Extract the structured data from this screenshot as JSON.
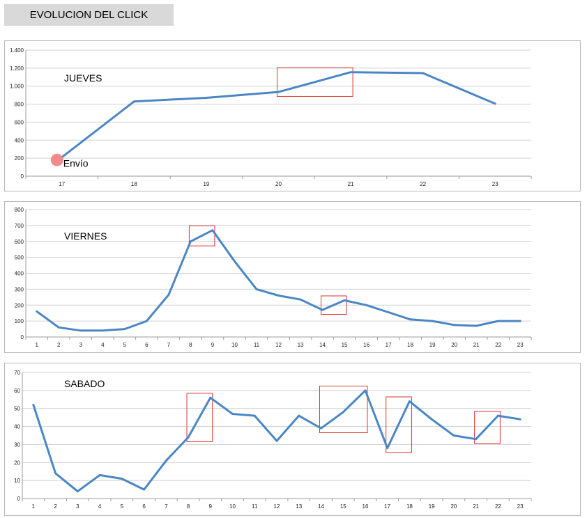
{
  "header": {
    "title": "EVOLUCION DEL CLICK"
  },
  "colors": {
    "line": "#4a86c5",
    "highlight": "#e03030",
    "grid": "#d0d0d0",
    "marker": "#f08080"
  },
  "chart_data": [
    {
      "type": "line",
      "label": "JUEVES",
      "categories": [
        "17",
        "18",
        "19",
        "20",
        "21",
        "22",
        "23"
      ],
      "values": [
        210,
        830,
        870,
        935,
        1155,
        1145,
        805
      ],
      "ylim": [
        0,
        1400
      ],
      "yticks": [
        0,
        200,
        400,
        600,
        800,
        1000,
        1200,
        1400
      ],
      "ytick_labels": [
        "0",
        "200",
        "400",
        "600",
        "800",
        "1.000",
        "1.200",
        "1.400"
      ],
      "grid": true,
      "annotations": [
        {
          "text": "Envío",
          "x": "17",
          "y": 180
        }
      ],
      "highlight_ranges": [
        {
          "from": "20",
          "to": "21"
        }
      ]
    },
    {
      "type": "line",
      "label": "VIERNES",
      "categories": [
        "1",
        "2",
        "3",
        "4",
        "5",
        "6",
        "7",
        "8",
        "9",
        "10",
        "11",
        "12",
        "13",
        "14",
        "15",
        "16",
        "17",
        "18",
        "19",
        "20",
        "21",
        "22",
        "23"
      ],
      "values": [
        160,
        60,
        40,
        40,
        50,
        100,
        265,
        600,
        670,
        475,
        300,
        260,
        235,
        170,
        230,
        200,
        155,
        110,
        100,
        75,
        70,
        100,
        100
      ],
      "ylim": [
        0,
        800
      ],
      "yticks": [
        0,
        100,
        200,
        300,
        400,
        500,
        600,
        700,
        800
      ],
      "ytick_labels": [
        "0",
        "100",
        "200",
        "300",
        "400",
        "500",
        "600",
        "700",
        "800"
      ],
      "grid": true,
      "highlight_ranges": [
        {
          "from": "8",
          "to": "9"
        },
        {
          "from": "14",
          "to": "15"
        }
      ]
    },
    {
      "type": "line",
      "label": "SABADO",
      "categories": [
        "1",
        "2",
        "3",
        "4",
        "5",
        "6",
        "7",
        "8",
        "9",
        "10",
        "11",
        "12",
        "13",
        "14",
        "15",
        "16",
        "17",
        "18",
        "19",
        "20",
        "21",
        "22",
        "23"
      ],
      "values": [
        52,
        14,
        4,
        13,
        11,
        5,
        21,
        34,
        56,
        47,
        46,
        32,
        46,
        39,
        48,
        60,
        28,
        54,
        44,
        35,
        33,
        46,
        44
      ],
      "ylim": [
        0,
        70
      ],
      "yticks": [
        0,
        10,
        20,
        30,
        40,
        50,
        60,
        70
      ],
      "ytick_labels": [
        "0",
        "10",
        "20",
        "30",
        "40",
        "50",
        "60",
        "70"
      ],
      "grid": true,
      "highlight_ranges": [
        {
          "from": "8",
          "to": "9"
        },
        {
          "from": "14",
          "to": "16"
        },
        {
          "from": "17",
          "to": "18"
        },
        {
          "from": "21",
          "to": "22"
        }
      ]
    }
  ]
}
